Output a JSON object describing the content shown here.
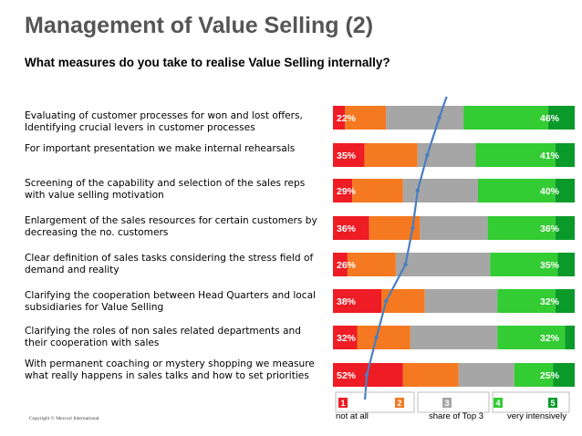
{
  "header": {
    "title": "Management of Value Selling (2)",
    "subtitle": "What measures do you take to realise Value Selling internally?"
  },
  "footer": {
    "copyright": "Copyright © Mercuri International",
    "left_label": "not at all",
    "mid_label": "share of Top 3",
    "right_label": "very intensively"
  },
  "colors": {
    "c1": "#ee1c25",
    "c2": "#f47920",
    "c3": "#a6a6a6",
    "c4": "#33cc33",
    "c5": "#0a9a2a",
    "line": "#4a7ec0"
  },
  "chart_data": {
    "type": "bar",
    "stacked": true,
    "orientation": "horizontal",
    "scale": "percent",
    "categories": [
      "Evaluating of customer processes for won and lost offers, Identifying crucial levers in customer processes",
      "For important presentation we make internal rehearsals",
      "Screening of the capability and selection of the sales reps with value selling motivation",
      "Enlargement of the sales resources for certain customers by decreasing the no. customers",
      "Clear definition of sales tasks  considering the stress field of demand and reality",
      "Clarifying the  cooperation between Head Quarters and local  subsidiaries for Value Selling",
      "Clarifying the roles of non sales related departments and their cooperation with sales",
      "With permanent coaching or mystery shopping we measure what really happens in sales talks and how to set priorities"
    ],
    "labels_low": [
      "22%",
      "35%",
      "29%",
      "36%",
      "26%",
      "38%",
      "32%",
      "52%"
    ],
    "labels_high": [
      "46%",
      "41%",
      "40%",
      "36%",
      "35%",
      "32%",
      "32%",
      "25%"
    ],
    "series": [
      {
        "name": "1",
        "values": [
          5,
          13,
          8,
          15,
          6,
          20,
          10,
          29
        ]
      },
      {
        "name": "2",
        "values": [
          17,
          22,
          21,
          21,
          20,
          18,
          22,
          23
        ]
      },
      {
        "name": "3",
        "values": [
          32,
          24,
          31,
          28,
          39,
          30,
          36,
          23
        ]
      },
      {
        "name": "4",
        "values": [
          35,
          33,
          32,
          28,
          28,
          24,
          28,
          16
        ]
      },
      {
        "name": "5",
        "values": [
          11,
          8,
          8,
          8,
          7,
          8,
          4,
          9
        ]
      }
    ],
    "share_of_top3": [
      44,
      39,
      35,
      33,
      30,
      22,
      18,
      14
    ],
    "legend_labels": [
      "1",
      "2",
      "3",
      "4",
      "5"
    ],
    "legend_placement": "bottom",
    "xlim": [
      0,
      100
    ],
    "grid": false
  }
}
